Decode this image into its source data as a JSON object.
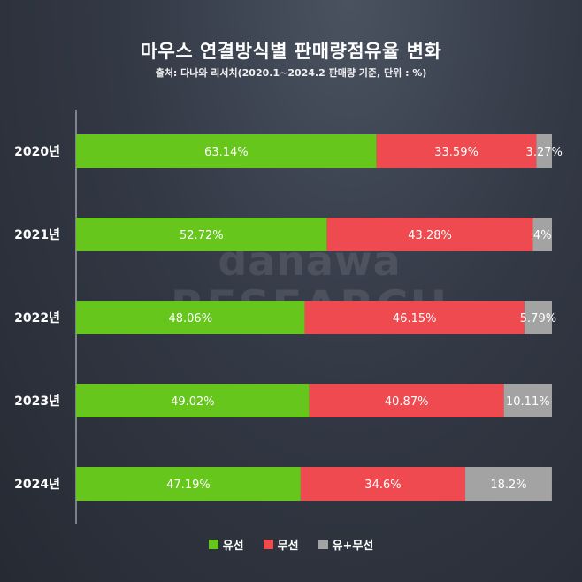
{
  "colors": {
    "wired": "#66c61c",
    "wireless": "#ef4a4f",
    "both": "#a3a3a3"
  },
  "watermark": {
    "top": "danawa",
    "bottom": "RESEARCH"
  },
  "chart_data": {
    "type": "bar",
    "orientation": "horizontal",
    "stacked": true,
    "title": "마우스 연결방식별 판매량점유율 변화",
    "subtitle": "출처: 다나와 리서치(2020.1~2024.2 판매량 기준, 단위 : %)",
    "categories": [
      "2020년",
      "2021년",
      "2022년",
      "2023년",
      "2024년"
    ],
    "series": [
      {
        "name": "유선",
        "values": [
          63.14,
          52.72,
          48.06,
          49.02,
          47.19
        ],
        "labels": [
          "63.14%",
          "52.72%",
          "48.06%",
          "49.02%",
          "47.19%"
        ],
        "color": "#66c61c"
      },
      {
        "name": "무선",
        "values": [
          33.59,
          43.28,
          46.15,
          40.87,
          34.6
        ],
        "labels": [
          "33.59%",
          "43.28%",
          "46.15%",
          "40.87%",
          "34.6%"
        ],
        "color": "#ef4a4f"
      },
      {
        "name": "유+무선",
        "values": [
          3.27,
          4,
          5.79,
          10.11,
          18.2
        ],
        "labels": [
          "3.27%",
          "4%",
          "5.79%",
          "10.11%",
          "18.2%"
        ],
        "color": "#a3a3a3"
      }
    ],
    "xlim": [
      0,
      100
    ],
    "legend": "bottom",
    "grid": false
  }
}
